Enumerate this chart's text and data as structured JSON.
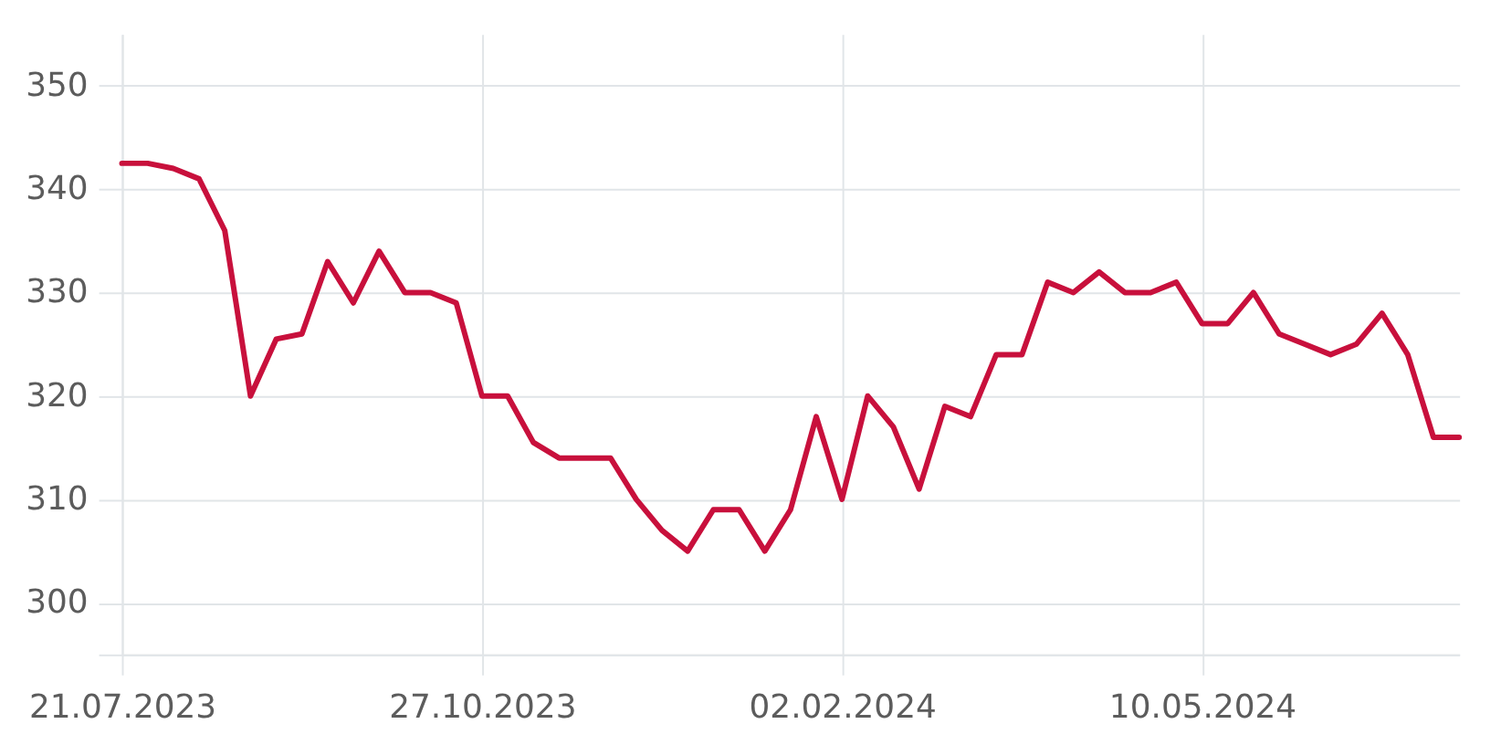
{
  "chart_data": {
    "type": "line",
    "x": [
      "2023-07-21",
      "2023-07-28",
      "2023-08-04",
      "2023-08-11",
      "2023-08-18",
      "2023-08-25",
      "2023-09-01",
      "2023-09-08",
      "2023-09-15",
      "2023-09-22",
      "2023-09-29",
      "2023-10-06",
      "2023-10-13",
      "2023-10-20",
      "2023-10-27",
      "2023-11-03",
      "2023-11-10",
      "2023-11-17",
      "2023-11-24",
      "2023-12-01",
      "2023-12-08",
      "2023-12-15",
      "2023-12-22",
      "2023-12-29",
      "2024-01-05",
      "2024-01-12",
      "2024-01-19",
      "2024-01-26",
      "2024-02-02",
      "2024-02-09",
      "2024-02-16",
      "2024-02-23",
      "2024-03-01",
      "2024-03-08",
      "2024-03-15",
      "2024-03-22",
      "2024-03-29",
      "2024-04-05",
      "2024-04-12",
      "2024-04-19",
      "2024-04-26",
      "2024-05-03",
      "2024-05-10",
      "2024-05-17",
      "2024-05-24",
      "2024-05-31",
      "2024-06-07",
      "2024-06-14",
      "2024-06-21",
      "2024-06-28",
      "2024-07-05",
      "2024-07-12",
      "2024-07-19"
    ],
    "values": [
      342.5,
      342.5,
      342,
      341,
      336,
      320,
      325.5,
      326,
      333,
      329,
      334,
      330,
      330,
      329,
      320,
      320,
      315.5,
      314,
      314,
      314,
      310,
      307,
      305,
      309,
      309,
      305,
      309,
      318,
      310,
      320,
      317,
      311,
      319,
      318,
      324,
      324,
      331,
      330,
      332,
      330,
      330,
      331,
      327,
      327,
      330,
      326,
      325,
      324,
      325,
      328,
      324,
      316,
      316
    ],
    "color": "#c8103c",
    "line_style": "solid",
    "xlim": [
      "2023-07-21",
      "2024-07-19"
    ],
    "xticks": [
      {
        "value": "2023-07-21",
        "label": "21.07.2023"
      },
      {
        "value": "2023-10-27",
        "label": "27.10.2023"
      },
      {
        "value": "2024-02-02",
        "label": "02.02.2024"
      },
      {
        "value": "2024-05-10",
        "label": "10.05.2024"
      }
    ],
    "ylim": [
      295,
      355
    ],
    "yticks": [
      {
        "value": 295,
        "label": null
      },
      300,
      310,
      320,
      330,
      340,
      350
    ],
    "grid": true
  }
}
